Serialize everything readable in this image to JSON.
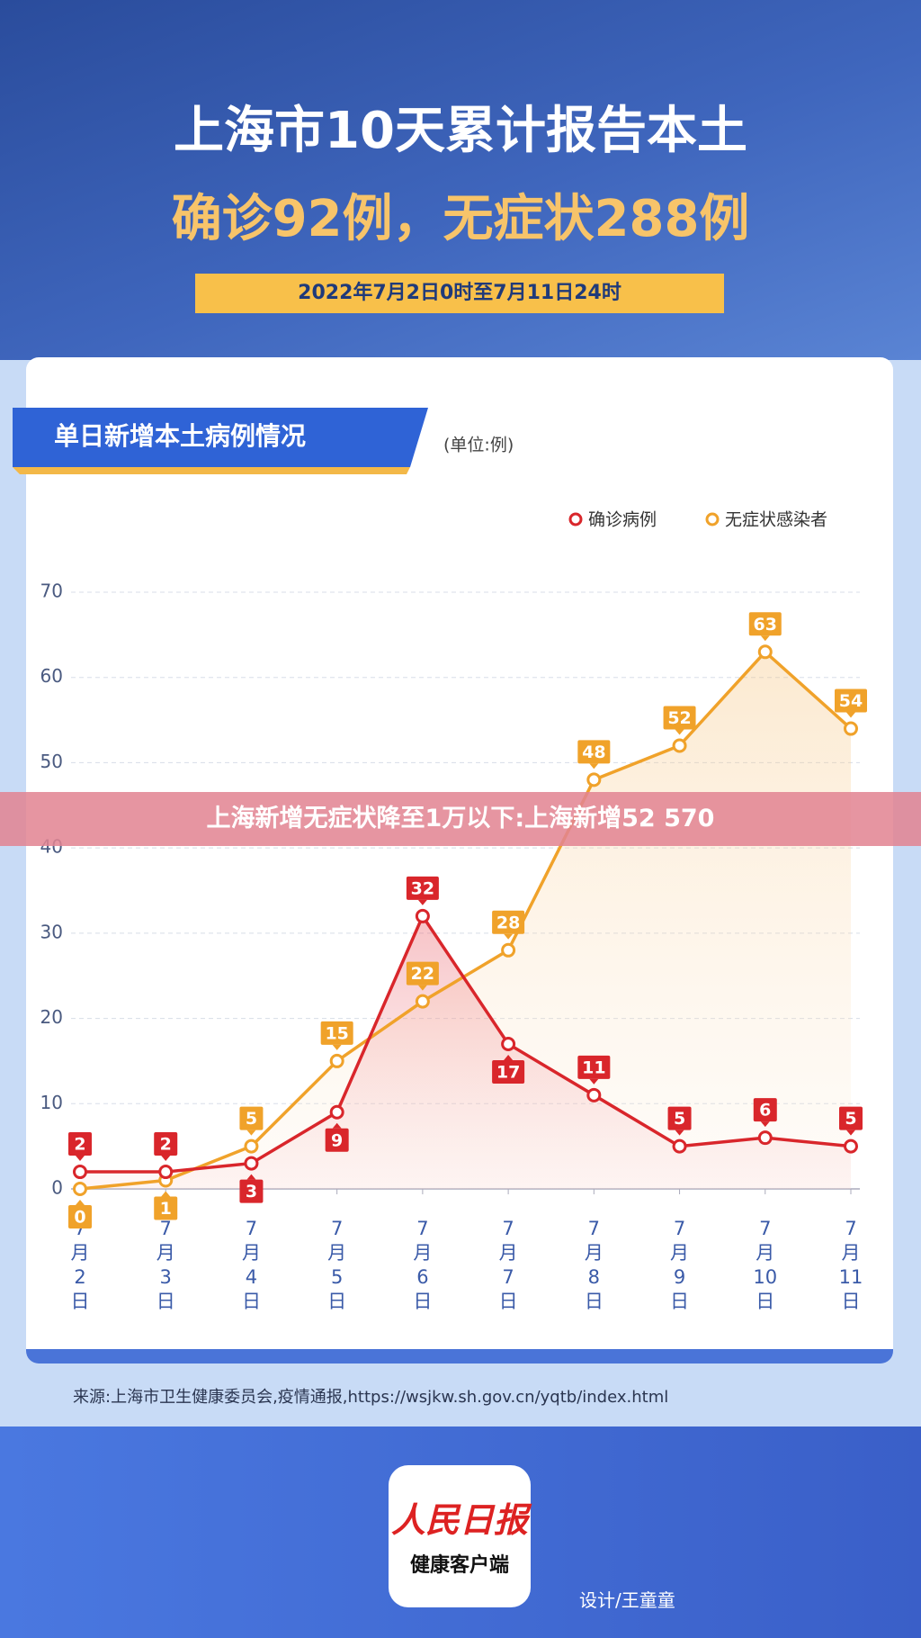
{
  "header": {
    "line1": "上海市10天累计报告本土",
    "line2": "确诊92例，无症状288例",
    "date_range": "2022年7月2日0时至7月11日24时"
  },
  "chart_data": {
    "type": "line",
    "title": "单日新增本土病例情况",
    "unit_note": "(单位:例)",
    "categories": [
      "7月2日",
      "7月3日",
      "7月4日",
      "7月5日",
      "7月6日",
      "7月7日",
      "7月8日",
      "7月9日",
      "7月10日",
      "7月11日"
    ],
    "series": [
      {
        "name": "确诊病例",
        "color": "#d9262b",
        "values": [
          2,
          2,
          3,
          9,
          32,
          17,
          11,
          5,
          6,
          5
        ]
      },
      {
        "name": "无症状感染者",
        "color": "#f0a22a",
        "values": [
          0,
          1,
          5,
          15,
          22,
          28,
          48,
          52,
          63,
          54
        ]
      }
    ],
    "ylim": [
      0,
      70
    ],
    "yticks": [
      0,
      10,
      20,
      30,
      40,
      50,
      60,
      70
    ],
    "grid": true,
    "legend": "top-right"
  },
  "overlay_caption": "上海新增无症状降至1万以下:上海新增52 570",
  "source": "来源:上海市卫生健康委员会,疫情通报,https://wsjkw.sh.gov.cn/yqtb/index.html",
  "logo": {
    "name": "人民日报",
    "sub": "健康客户端"
  },
  "credit": "设计/王童童"
}
